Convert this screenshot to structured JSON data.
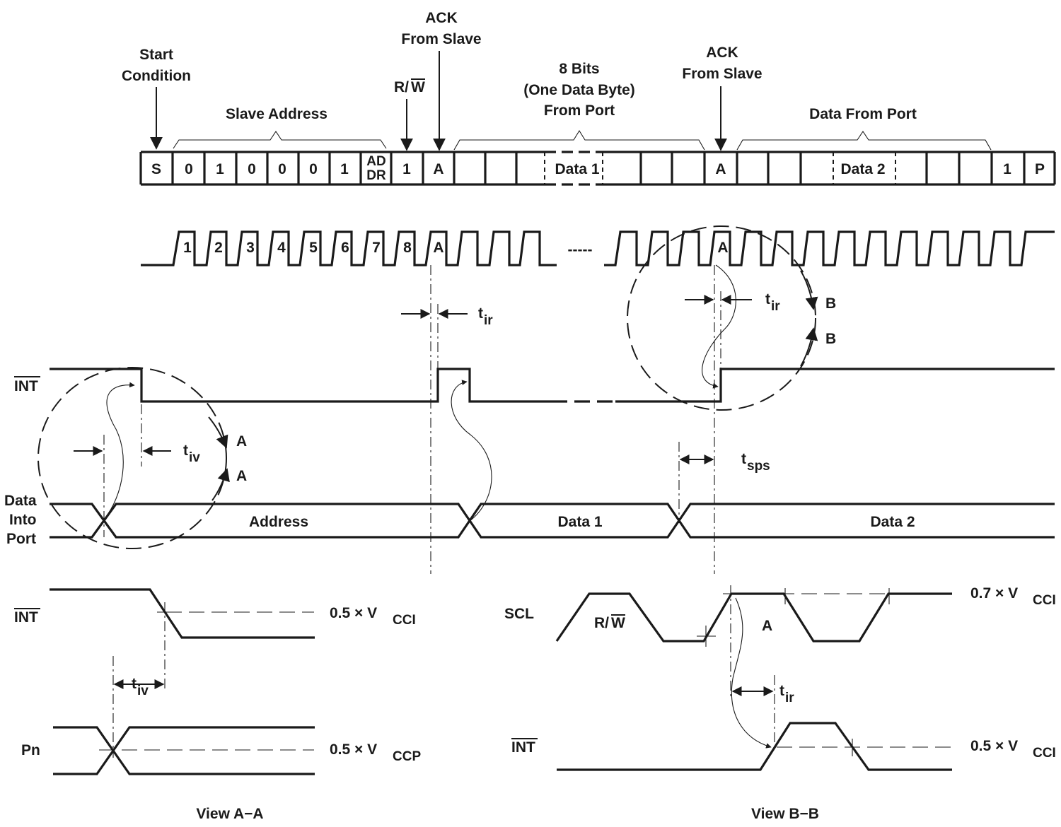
{
  "frame": {
    "start_condition": [
      "Start",
      "Condition"
    ],
    "slave_address": "Slave Address",
    "rw_prefix": "R/",
    "rw_overbar": "W",
    "ack_from_slave_1": [
      "ACK",
      "From Slave"
    ],
    "ack_from_slave_2": [
      "ACK",
      "From Slave"
    ],
    "eight_bits": [
      "8 Bits",
      "(One Data Byte)",
      "From Port"
    ],
    "data_from_port": "Data From Port",
    "cells": {
      "s": "S",
      "addr_bits": [
        "0",
        "1",
        "0",
        "0",
        "0",
        "1"
      ],
      "addr_pin": [
        "AD",
        "DR"
      ],
      "rw_bit": "1",
      "ack1": "A",
      "data1": "Data 1",
      "ack2": "A",
      "data2": "Data 2",
      "stop_bit": "1",
      "p": "P"
    }
  },
  "scl": {
    "pulse_labels": [
      "1",
      "2",
      "3",
      "4",
      "5",
      "6",
      "7",
      "8",
      "A"
    ],
    "ack2_label": "A",
    "gap": "-----"
  },
  "timing": {
    "t_ir": {
      "main": "t",
      "sub": "ir"
    },
    "t_iv": {
      "main": "t",
      "sub": "iv"
    },
    "t_sps": {
      "main": "t",
      "sub": "sps"
    },
    "view_a_marks": [
      "A",
      "A"
    ],
    "view_b_marks": [
      "B",
      "B"
    ]
  },
  "signals": {
    "int": "INT",
    "data_into_port": [
      "Data",
      "Into",
      "Port"
    ],
    "bus_address": "Address",
    "bus_data1": "Data 1",
    "bus_data2": "Data 2"
  },
  "view_a": {
    "int": "INT",
    "pn": "Pn",
    "vcci_ref": {
      "prefix": "0.5 × V",
      "sub": "CCI"
    },
    "vccp_ref": {
      "prefix": "0.5 × V",
      "sub": "CCP"
    },
    "t_iv": {
      "main": "t",
      "sub": "iv"
    },
    "title": "View A−A"
  },
  "view_b": {
    "scl": "SCL",
    "rw_prefix": "R/",
    "rw_overbar": "W",
    "mark_a": "A",
    "int": "INT",
    "vcci_high": {
      "prefix": "0.7 × V",
      "sub": "CCI"
    },
    "vcci_mid": {
      "prefix": "0.5 × V",
      "sub": "CCI"
    },
    "t_ir": {
      "main": "t",
      "sub": "ir"
    },
    "title": "View B−B"
  }
}
